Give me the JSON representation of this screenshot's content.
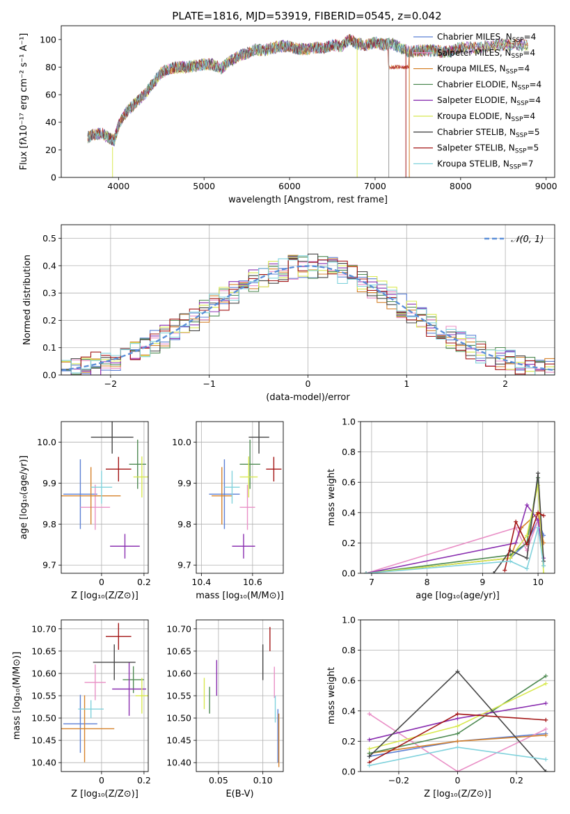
{
  "figure_title": "PLATE=1816, MJD=53919, FIBERID=0545, z=0.042",
  "model_colors": [
    "#5b7fd4",
    "#e98fc6",
    "#d6822b",
    "#4e8a52",
    "#8a2fb0",
    "#d8e84f",
    "#444444",
    "#a31515",
    "#80d2dc"
  ],
  "legend": [
    {
      "label": "Chabrier MILES, N",
      "sub": "SSP",
      "tail": "=4",
      "color": "#5b7fd4"
    },
    {
      "label": "Salpeter MILES, N",
      "sub": "SSP",
      "tail": "=4",
      "color": "#e98fc6"
    },
    {
      "label": "Kroupa MILES, N",
      "sub": "SSP",
      "tail": "=4",
      "color": "#d6822b"
    },
    {
      "label": "Chabrier ELODIE, N",
      "sub": "SSP",
      "tail": "=4",
      "color": "#4e8a52"
    },
    {
      "label": "Salpeter ELODIE, N",
      "sub": "SSP",
      "tail": "=4",
      "color": "#8a2fb0"
    },
    {
      "label": "Kroupa ELODIE, N",
      "sub": "SSP",
      "tail": "=4",
      "color": "#d8e84f"
    },
    {
      "label": "Chabrier STELIB, N",
      "sub": "SSP",
      "tail": "=5",
      "color": "#444444"
    },
    {
      "label": "Salpeter STELIB, N",
      "sub": "SSP",
      "tail": "=5",
      "color": "#a31515"
    },
    {
      "label": "Kroupa STELIB, N",
      "sub": "SSP",
      "tail": "=7",
      "color": "#80d2dc"
    }
  ],
  "chart_data": [
    {
      "id": "spectrum",
      "type": "line",
      "xlabel": "wavelength [Angstrom, rest frame]",
      "ylabel": "Flux [fλ10⁻¹⁷ erg cm⁻² s⁻¹ A⁻¹]",
      "xlim": [
        3330,
        9100
      ],
      "ylim": [
        0,
        110
      ],
      "xticks": [
        4000,
        5000,
        6000,
        7000,
        8000,
        9000
      ],
      "yticks": [
        0,
        20,
        40,
        60,
        80,
        100
      ],
      "x": [
        3640,
        3700,
        3800,
        3900,
        3950,
        4000,
        4100,
        4200,
        4300,
        4400,
        4500,
        4600,
        4700,
        4800,
        4900,
        5000,
        5100,
        5200,
        5300,
        5400,
        5500,
        5600,
        5700,
        5800,
        5900,
        6000,
        6100,
        6200,
        6300,
        6400,
        6500,
        6600,
        6700,
        6800,
        6900,
        7000,
        7100,
        7200,
        7300,
        7400,
        7500,
        7600,
        7700,
        7800,
        7900,
        8000,
        8200,
        8400,
        8600,
        8800
      ],
      "flux": [
        29,
        31,
        32,
        28,
        27,
        38,
        48,
        54,
        60,
        68,
        76,
        79,
        80,
        80,
        81,
        82,
        82,
        79,
        84,
        88,
        90,
        93,
        92,
        94,
        95,
        95,
        93,
        93,
        94,
        94,
        96,
        95,
        100,
        97,
        96,
        98,
        96,
        97,
        94,
        91,
        92,
        92,
        92,
        91,
        92,
        94,
        94,
        96,
        96,
        96
      ],
      "truncated_flux": [
        80,
        80,
        81,
        81,
        82
      ],
      "truncated_x": [
        7150,
        7200,
        7250,
        7300,
        7380
      ],
      "drop_lines": [
        3930,
        6790,
        7160,
        7360,
        7400
      ]
    },
    {
      "id": "residuals",
      "type": "step",
      "xlabel": "(data-model)/error",
      "ylabel": "Normed distribution",
      "xlim": [
        -2.5,
        2.5
      ],
      "ylim": [
        0,
        0.55
      ],
      "xticks": [
        -2,
        -1,
        0,
        1,
        2
      ],
      "yticks": [
        0.0,
        0.1,
        0.2,
        0.3,
        0.4,
        0.5
      ],
      "reference": {
        "name": "𝒩(0, 1)",
        "mean": 0,
        "sigma": 1,
        "color": "#5b8fd8"
      }
    },
    {
      "id": "age_vs_Z",
      "type": "errorbar",
      "xlabel": "Z [log₁₀(Z/Z⊙)]",
      "ylabel": "age  [log₁₀(age/yr)]",
      "xlim": [
        -0.19,
        0.22
      ],
      "ylim": [
        9.68,
        10.05
      ],
      "xticks": [
        0.0,
        0.2
      ],
      "yticks": [
        9.7,
        9.8,
        9.9,
        10.0
      ],
      "points": [
        {
          "x": -0.1,
          "xerr": 0.08,
          "y": 9.873,
          "yerr": 0.085
        },
        {
          "x": -0.03,
          "xerr": 0.07,
          "y": 9.841,
          "yerr": 0.055
        },
        {
          "x": -0.05,
          "xerr": 0.14,
          "y": 9.869,
          "yerr": 0.07
        },
        {
          "x": 0.17,
          "xerr": 0.04,
          "y": 9.946,
          "yerr": 0.06
        },
        {
          "x": 0.11,
          "xerr": 0.07,
          "y": 9.746,
          "yerr": 0.03
        },
        {
          "x": 0.19,
          "xerr": 0.04,
          "y": 9.915,
          "yerr": 0.05
        },
        {
          "x": 0.05,
          "xerr": 0.1,
          "y": 10.012,
          "yerr": 0.04
        },
        {
          "x": 0.08,
          "xerr": 0.06,
          "y": 9.934,
          "yerr": 0.03
        },
        {
          "x": 0.0,
          "xerr": 0.05,
          "y": 9.89,
          "yerr": 0.04
        }
      ]
    },
    {
      "id": "age_vs_mass",
      "type": "errorbar",
      "xlabel": "mass [log₁₀(M/M⊙)]",
      "xlim": [
        10.38,
        10.72
      ],
      "ylim": [
        9.68,
        10.05
      ],
      "xticks": [
        10.4,
        10.6
      ],
      "yticks": [
        9.7,
        9.8,
        9.9,
        10.0
      ],
      "points": [
        {
          "x": 10.49,
          "xerr": 0.06,
          "y": 9.873,
          "yerr": 0.085
        },
        {
          "x": 10.58,
          "xerr": 0.03,
          "y": 9.841,
          "yerr": 0.055
        },
        {
          "x": 10.48,
          "xerr": 0.04,
          "y": 9.869,
          "yerr": 0.07
        },
        {
          "x": 10.59,
          "xerr": 0.04,
          "y": 9.946,
          "yerr": 0.06
        },
        {
          "x": 10.565,
          "xerr": 0.045,
          "y": 9.746,
          "yerr": 0.03
        },
        {
          "x": 10.585,
          "xerr": 0.035,
          "y": 9.915,
          "yerr": 0.05
        },
        {
          "x": 10.625,
          "xerr": 0.04,
          "y": 10.012,
          "yerr": 0.04
        },
        {
          "x": 10.683,
          "xerr": 0.03,
          "y": 9.934,
          "yerr": 0.03
        },
        {
          "x": 10.52,
          "xerr": 0.03,
          "y": 9.89,
          "yerr": 0.04
        }
      ]
    },
    {
      "id": "mass_weight_vs_age",
      "type": "line",
      "xlabel": "age  [log₁₀(age/yr)]",
      "ylabel": "mass weight",
      "xlim": [
        6.8,
        10.3
      ],
      "ylim": [
        0,
        1.0
      ],
      "xticks": [
        7,
        8,
        9,
        10
      ],
      "yticks": [
        0.0,
        0.2,
        0.4,
        0.6,
        0.8,
        1.0
      ],
      "series": [
        {
          "x": [
            6.9,
            9.5,
            9.8,
            10.0,
            10.1
          ],
          "y": [
            0.0,
            0.1,
            0.2,
            0.35,
            0.25
          ]
        },
        {
          "x": [
            6.9,
            9.6,
            9.8,
            10.0,
            10.1
          ],
          "y": [
            0.0,
            0.3,
            0.15,
            0.35,
            0.2
          ]
        },
        {
          "x": [
            6.9,
            9.5,
            9.7,
            10.0,
            10.1
          ],
          "y": [
            0.0,
            0.1,
            0.3,
            0.4,
            0.2
          ]
        },
        {
          "x": [
            6.9,
            9.5,
            9.8,
            10.0,
            10.1
          ],
          "y": [
            0.0,
            0.12,
            0.2,
            0.63,
            0.05
          ]
        },
        {
          "x": [
            6.9,
            9.6,
            9.8,
            10.0,
            10.1
          ],
          "y": [
            0.0,
            0.2,
            0.45,
            0.35,
            0.1
          ]
        },
        {
          "x": [
            6.9,
            9.5,
            9.8,
            10.0,
            10.1
          ],
          "y": [
            0.0,
            0.1,
            0.25,
            0.58,
            0.0
          ]
        },
        {
          "x": [
            9.2,
            9.5,
            9.8,
            10.0,
            10.1
          ],
          "y": [
            0.0,
            0.15,
            0.1,
            0.66,
            0.08
          ]
        },
        {
          "x": [
            9.4,
            9.6,
            9.8,
            10.0,
            10.1
          ],
          "y": [
            0.02,
            0.34,
            0.19,
            0.4,
            0.38
          ]
        },
        {
          "x": [
            6.9,
            9.5,
            9.8,
            10.0,
            10.1
          ],
          "y": [
            0.0,
            0.08,
            0.03,
            0.3,
            0.05
          ]
        }
      ]
    },
    {
      "id": "mass_vs_Z",
      "type": "errorbar",
      "xlabel": "Z [log₁₀(Z/Z⊙)]",
      "ylabel": "mass [log₁₀(M/M⊙)]",
      "xlim": [
        -0.19,
        0.22
      ],
      "ylim": [
        10.38,
        10.72
      ],
      "xticks": [
        0.0,
        0.2
      ],
      "yticks": [
        10.4,
        10.45,
        10.5,
        10.55,
        10.6,
        10.65,
        10.7
      ],
      "points": [
        {
          "x": -0.1,
          "xerr": 0.08,
          "y": 10.487,
          "yerr": 0.065
        },
        {
          "x": -0.03,
          "xerr": 0.05,
          "y": 10.58,
          "yerr": 0.04
        },
        {
          "x": -0.08,
          "xerr": 0.14,
          "y": 10.476,
          "yerr": 0.075
        },
        {
          "x": 0.15,
          "xerr": 0.05,
          "y": 10.586,
          "yerr": 0.03
        },
        {
          "x": 0.13,
          "xerr": 0.08,
          "y": 10.565,
          "yerr": 0.06
        },
        {
          "x": 0.19,
          "xerr": 0.03,
          "y": 10.55,
          "yerr": 0.04
        },
        {
          "x": 0.06,
          "xerr": 0.1,
          "y": 10.625,
          "yerr": 0.04
        },
        {
          "x": 0.08,
          "xerr": 0.06,
          "y": 10.683,
          "yerr": 0.03
        },
        {
          "x": -0.05,
          "xerr": 0.06,
          "y": 10.52,
          "yerr": 0.02
        }
      ]
    },
    {
      "id": "mass_vs_EBV",
      "type": "errorbar",
      "xlabel": "E(B-V)",
      "xlim": [
        0.025,
        0.123
      ],
      "ylim": [
        10.38,
        10.72
      ],
      "xticks": [
        0.05,
        0.1
      ],
      "yticks": [
        10.4,
        10.45,
        10.5,
        10.55,
        10.6,
        10.65,
        10.7
      ],
      "points": [
        {
          "x": 0.117,
          "y": 10.46,
          "yerr": 0.06
        },
        {
          "x": 0.113,
          "y": 10.58,
          "yerr": 0.035
        },
        {
          "x": 0.118,
          "y": 10.45,
          "yerr": 0.06
        },
        {
          "x": 0.04,
          "y": 10.54,
          "yerr": 0.03
        },
        {
          "x": 0.048,
          "y": 10.59,
          "yerr": 0.04
        },
        {
          "x": 0.034,
          "y": 10.555,
          "yerr": 0.035
        },
        {
          "x": 0.1,
          "y": 10.625,
          "yerr": 0.04
        },
        {
          "x": 0.108,
          "y": 10.677,
          "yerr": 0.027
        },
        {
          "x": 0.114,
          "y": 10.52,
          "yerr": 0.03
        }
      ]
    },
    {
      "id": "mass_weight_vs_Z",
      "type": "line",
      "xlabel": "Z [log₁₀(Z/Z⊙)]",
      "ylabel": "mass weight",
      "xlim": [
        -0.33,
        0.33
      ],
      "ylim": [
        0,
        1.0
      ],
      "xticks": [
        -0.2,
        0.0,
        0.2
      ],
      "yticks": [
        0.0,
        0.2,
        0.4,
        0.6,
        0.8,
        1.0
      ],
      "series": [
        {
          "x": [
            -0.3,
            0.0,
            0.3
          ],
          "y": [
            0.1,
            0.2,
            0.25
          ]
        },
        {
          "x": [
            -0.3,
            0.0,
            0.3
          ],
          "y": [
            0.38,
            0.0,
            0.28
          ]
        },
        {
          "x": [
            -0.3,
            0.0,
            0.3
          ],
          "y": [
            0.12,
            0.2,
            0.24
          ]
        },
        {
          "x": [
            -0.3,
            0.0,
            0.3
          ],
          "y": [
            0.12,
            0.25,
            0.63
          ]
        },
        {
          "x": [
            -0.3,
            0.0,
            0.3
          ],
          "y": [
            0.21,
            0.35,
            0.45
          ]
        },
        {
          "x": [
            -0.3,
            0.0,
            0.3
          ],
          "y": [
            0.15,
            0.3,
            0.58
          ]
        },
        {
          "x": [
            -0.3,
            0.0,
            0.3
          ],
          "y": [
            0.1,
            0.66,
            0.0
          ]
        },
        {
          "x": [
            -0.3,
            0.0,
            0.3
          ],
          "y": [
            0.06,
            0.38,
            0.34
          ]
        },
        {
          "x": [
            -0.3,
            0.0,
            0.3
          ],
          "y": [
            0.04,
            0.16,
            0.08
          ]
        }
      ]
    }
  ]
}
